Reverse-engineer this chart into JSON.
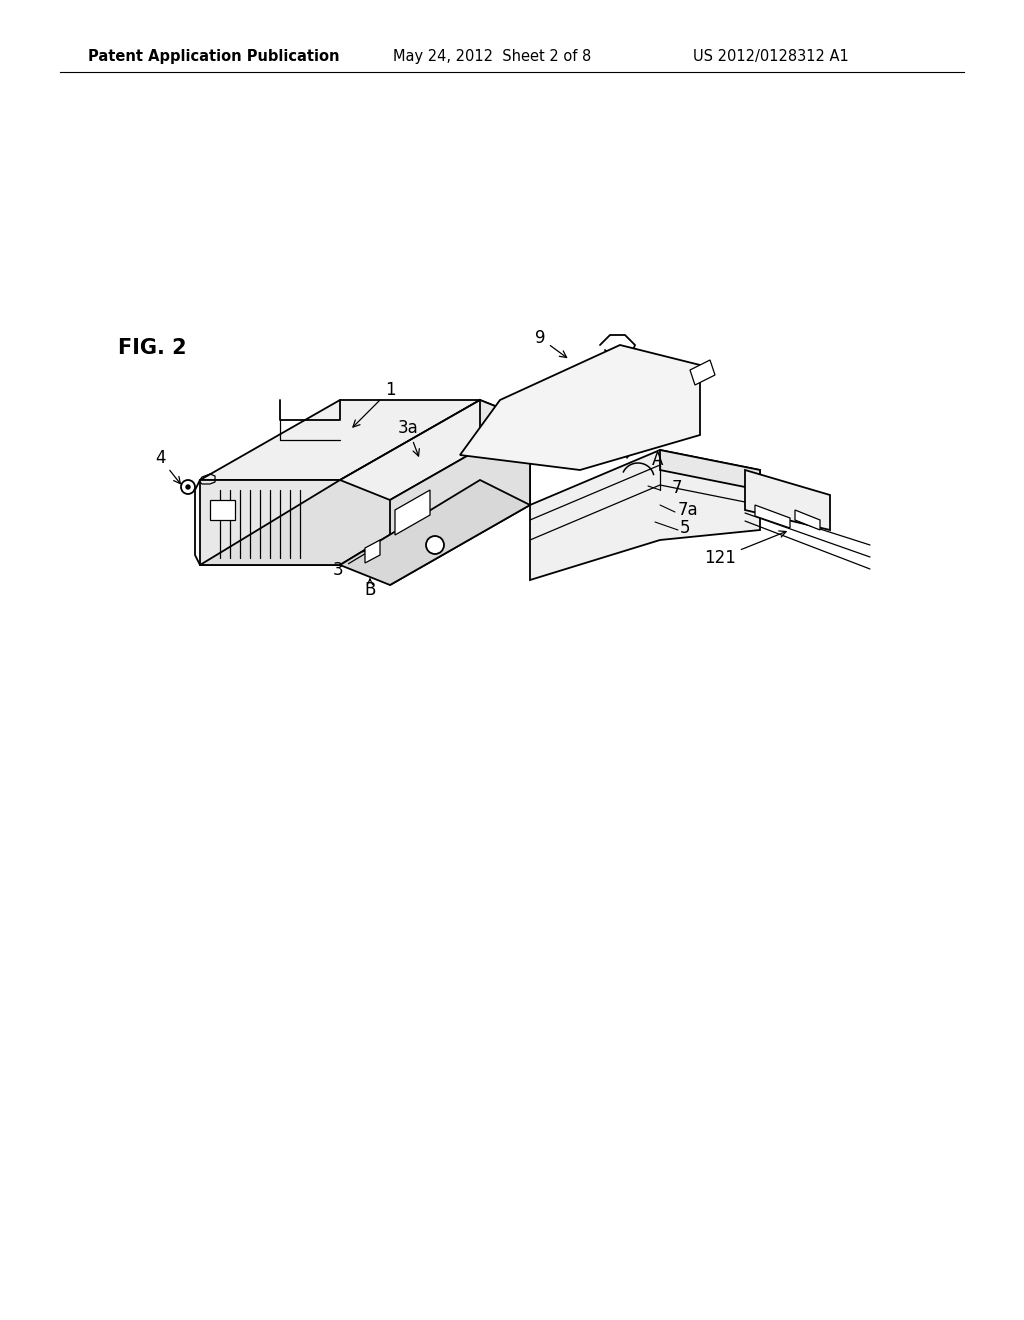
{
  "bg_color": "#ffffff",
  "header_left": "Patent Application Publication",
  "header_mid": "May 24, 2012  Sheet 2 of 8",
  "header_right": "US 2012/0128312 A1",
  "fig_label": "FIG. 2",
  "header_fontsize": 10.5,
  "label_fontsize": 12,
  "fig_label_fontsize": 15,
  "lw": 1.3
}
